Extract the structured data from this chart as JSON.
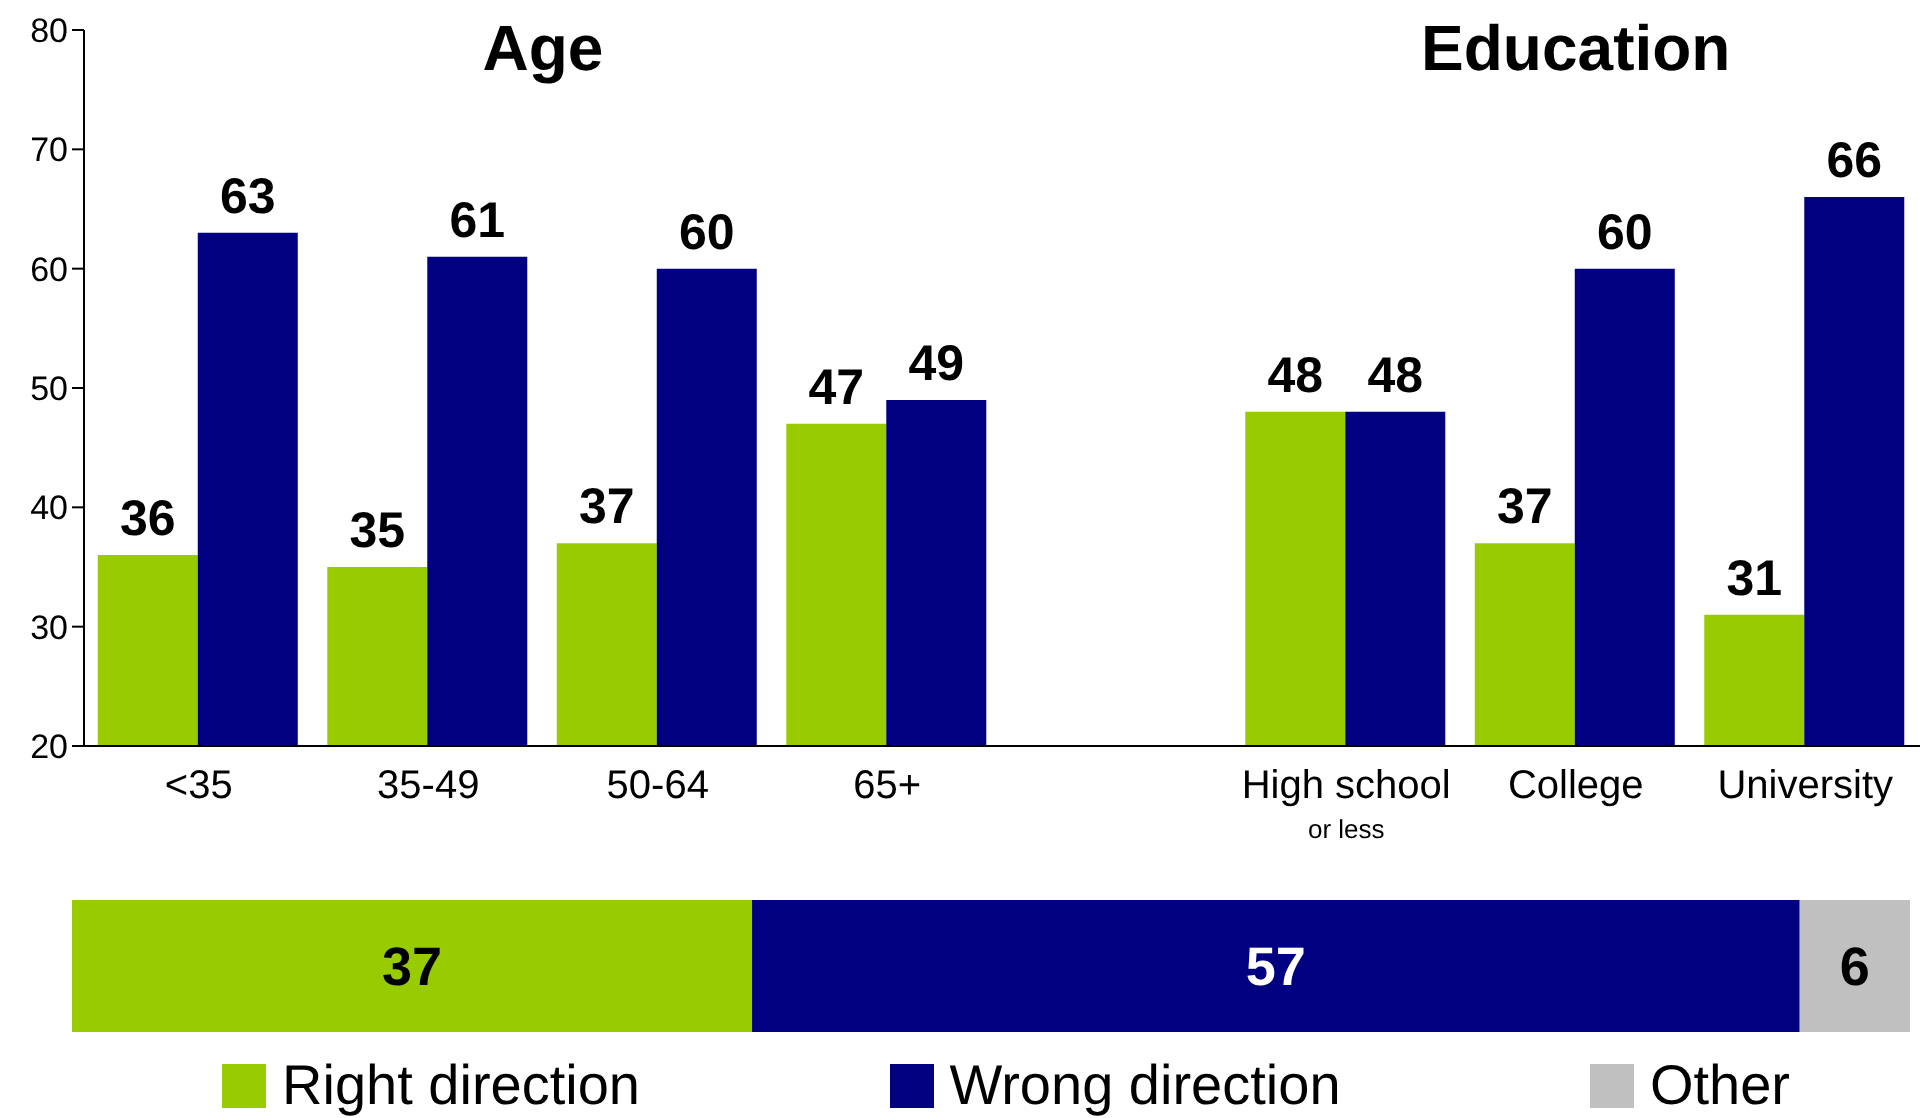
{
  "chart_data": [
    {
      "type": "bar",
      "annotations": [
        "Age",
        "Education"
      ],
      "categories": [
        "<35",
        "35-49",
        "50-64",
        "65+",
        null,
        "High school\nor less",
        "College",
        "University"
      ],
      "series": [
        {
          "color": "#99cc00",
          "values": [
            36,
            35,
            37,
            47,
            null,
            48,
            37,
            31
          ]
        },
        {
          "color": "#000080",
          "values": [
            63,
            61,
            60,
            49,
            null,
            48,
            60,
            66
          ]
        }
      ],
      "ylim": [
        20,
        80
      ],
      "yticks": [
        20,
        30,
        40,
        50,
        60,
        70,
        80
      ],
      "data_labels": true,
      "legend": false
    },
    {
      "type": "bar",
      "orientation": "horizontal",
      "stacked": true,
      "categories": [
        null
      ],
      "series": [
        {
          "name": "Right direction",
          "color": "#99cc00",
          "values": [
            37
          ]
        },
        {
          "name": "Wrong direction",
          "color": "#000080",
          "values": [
            57
          ]
        },
        {
          "name": "Other",
          "color": "#c0c0c0",
          "values": [
            6
          ]
        }
      ],
      "xlim": [
        0,
        100
      ],
      "tick_labels": false,
      "data_labels": true,
      "legend": "bottom"
    }
  ]
}
